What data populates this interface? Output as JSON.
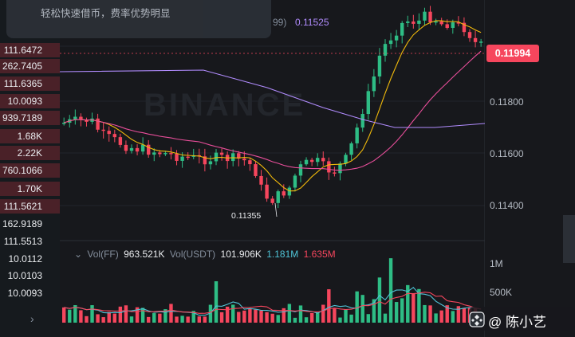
{
  "toast": {
    "message": "轻松快速借币，费率优势明显"
  },
  "ma_legend": {
    "partial_period": "99)",
    "value": "0.11525",
    "color": "#b18cfe"
  },
  "left_panel": {
    "rows": [
      {
        "text": "111.6472",
        "highlight": true
      },
      {
        "text": "262.7405",
        "highlight": true
      },
      {
        "text": "111.6365",
        "highlight": true
      },
      {
        "text": "10.0093",
        "highlight": true
      },
      {
        "text": "939.7189",
        "highlight": true
      },
      {
        "text": "1.68K",
        "highlight": true
      },
      {
        "text": "2.22K",
        "highlight": true
      },
      {
        "text": "760.1066",
        "highlight": true
      },
      {
        "text": "1.70K",
        "highlight": true
      },
      {
        "text": "111.5621",
        "highlight": true
      },
      {
        "text": "162.9189",
        "highlight": false
      },
      {
        "text": "111.5513",
        "highlight": false
      },
      {
        "text": "10.0112",
        "highlight": false
      },
      {
        "text": "10.0103",
        "highlight": false
      },
      {
        "text": "10.0093",
        "highlight": false
      }
    ],
    "chevron": "›"
  },
  "price_axis": {
    "labels": [
      "0.11800",
      "0.11600",
      "0.11400"
    ],
    "current_price": "0.11994",
    "current_color": "#f6465d"
  },
  "low_marker": "0.11355",
  "watermark": "BINANCE",
  "volume": {
    "title": "Vol(FF)",
    "value": "963.521K",
    "usdt_label": "Vol(USDT)",
    "usdt_value": "101.906K",
    "ma1": "1.181M",
    "ma2": "1.635M",
    "axis": [
      "1M",
      "500K"
    ],
    "colors": {
      "ma1": "#4fc3d6",
      "ma2": "#f6465d"
    }
  },
  "footer": {
    "text": "@ 陈小艺"
  },
  "colors": {
    "up": "#2ebd85",
    "down": "#f6465d",
    "ma7": "#f0b90b",
    "ma25": "#e84e9a",
    "ma99": "#b18cfe"
  }
}
